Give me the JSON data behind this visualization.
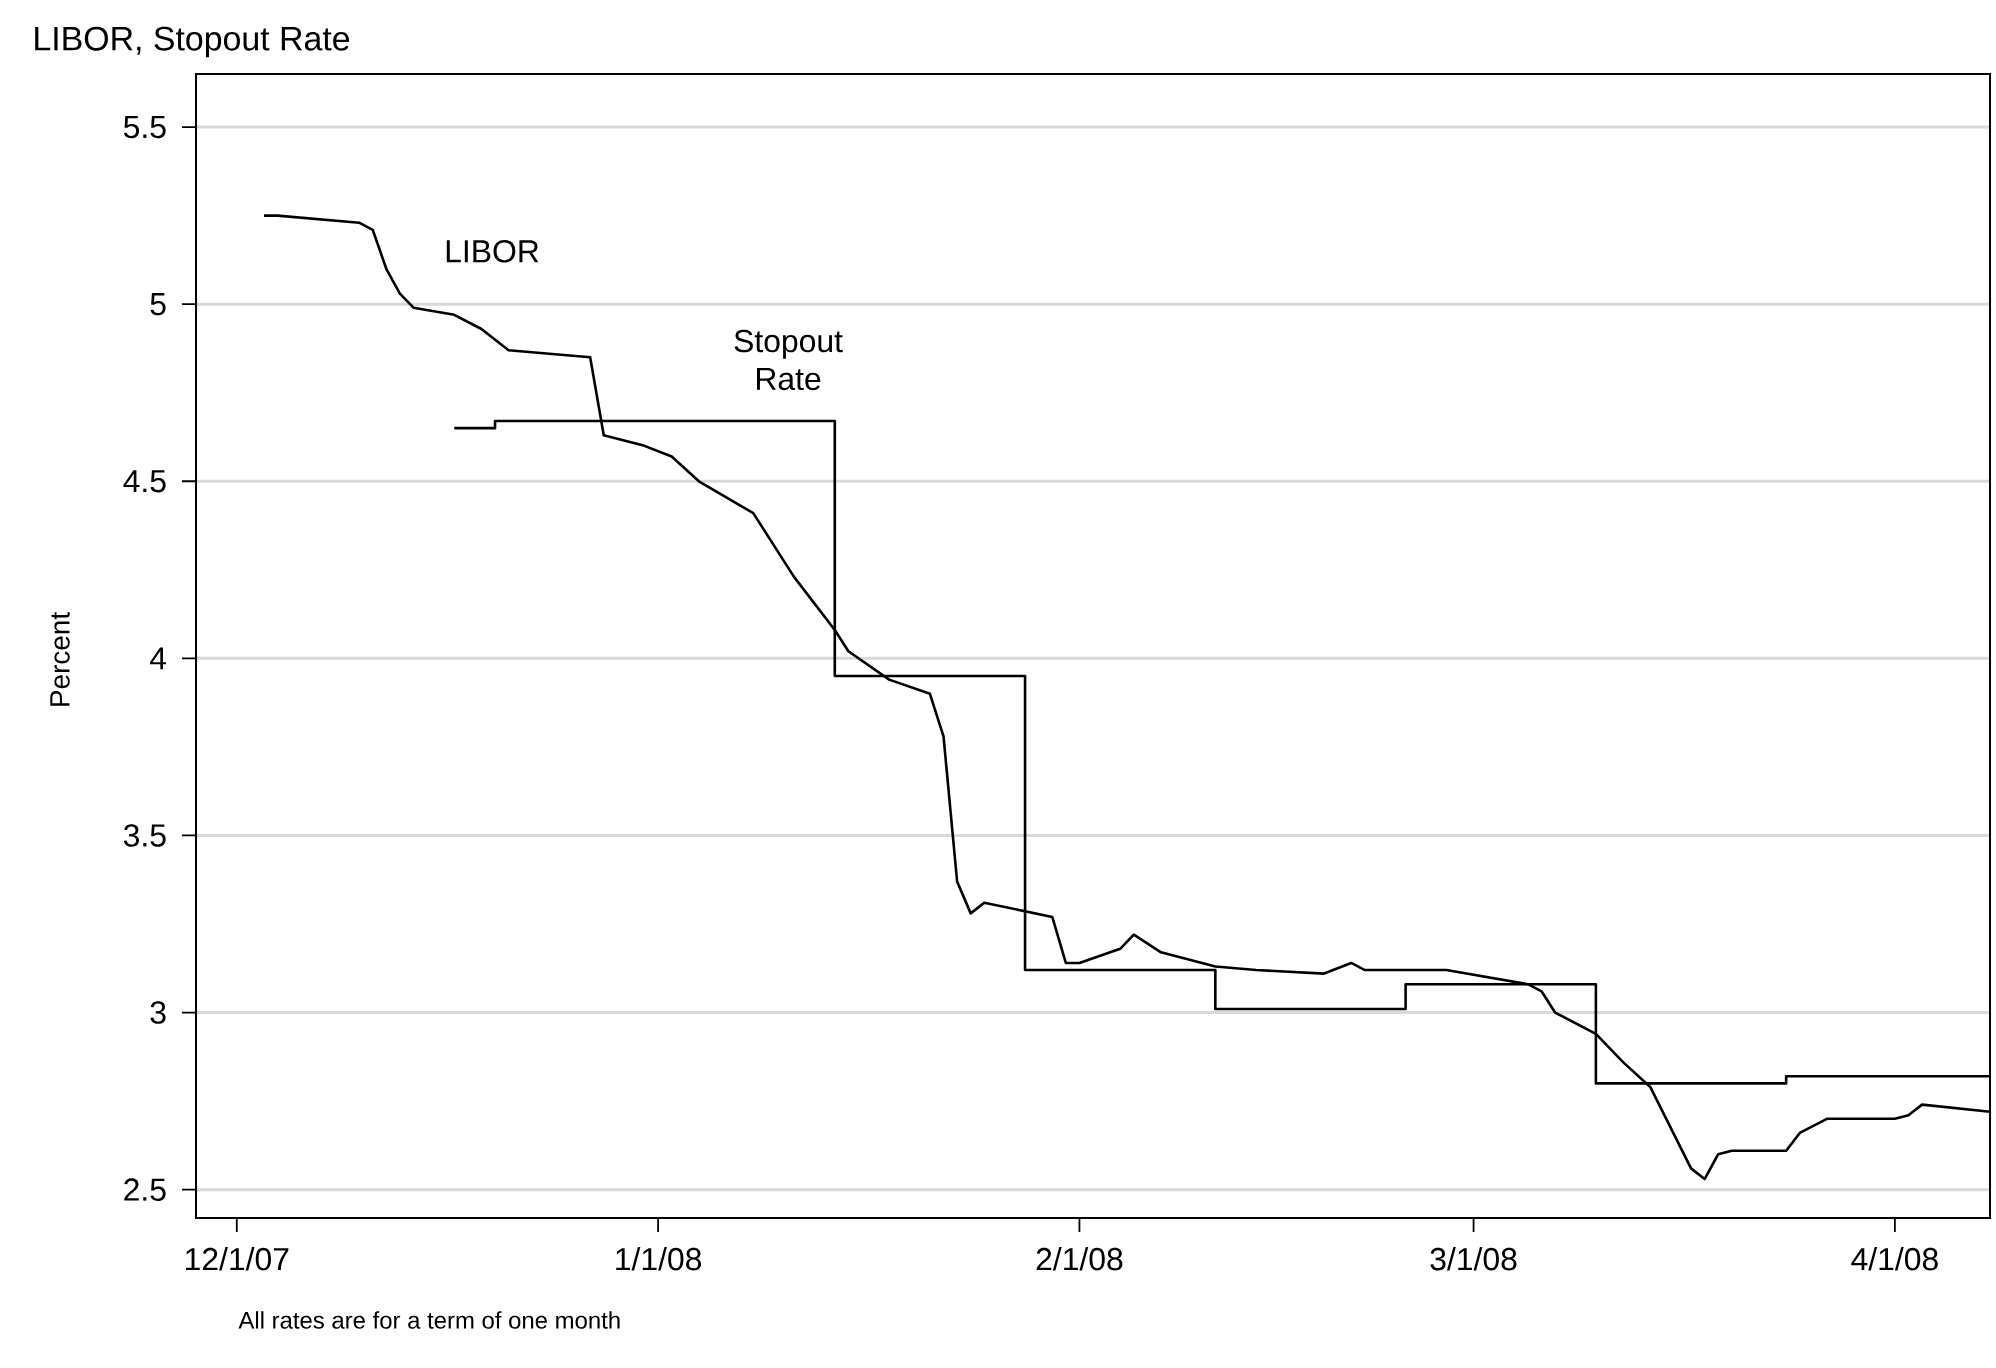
{
  "chart_data": {
    "type": "line",
    "title": "LIBOR, Stopout Rate",
    "ylabel": "Percent",
    "annotations": [
      "All rates are for a term of one month"
    ],
    "xlim": [
      "2007-11-28",
      "2008-04-08"
    ],
    "xticks": [
      {
        "value": "2007-12-01",
        "label": "12/1/07"
      },
      {
        "value": "2008-01-01",
        "label": "1/1/08"
      },
      {
        "value": "2008-02-01",
        "label": "2/1/08"
      },
      {
        "value": "2008-03-01",
        "label": "3/1/08"
      },
      {
        "value": "2008-04-01",
        "label": "4/1/08"
      }
    ],
    "ylim": [
      2.42,
      5.65
    ],
    "yticks": [
      2.5,
      3,
      3.5,
      4,
      4.5,
      5,
      5.5
    ],
    "grid": "y",
    "series": [
      {
        "name": "LIBOR",
        "type": "line",
        "color": "#000000",
        "x": [
          "2007-12-03",
          "2007-12-04",
          "2007-12-07",
          "2007-12-10",
          "2007-12-11",
          "2007-12-12",
          "2007-12-13",
          "2007-12-14",
          "2007-12-17",
          "2007-12-19",
          "2007-12-21",
          "2007-12-27",
          "2007-12-28",
          "2007-12-31",
          "2008-01-02",
          "2008-01-04",
          "2008-01-08",
          "2008-01-09",
          "2008-01-11",
          "2008-01-14",
          "2008-01-15",
          "2008-01-18",
          "2008-01-21",
          "2008-01-22",
          "2008-01-23",
          "2008-01-24",
          "2008-01-25",
          "2008-01-30",
          "2008-01-31",
          "2008-02-01",
          "2008-02-04",
          "2008-02-05",
          "2008-02-07",
          "2008-02-11",
          "2008-02-14",
          "2008-02-19",
          "2008-02-21",
          "2008-02-22",
          "2008-02-26",
          "2008-02-28",
          "2008-03-05",
          "2008-03-06",
          "2008-03-07",
          "2008-03-10",
          "2008-03-12",
          "2008-03-14",
          "2008-03-17",
          "2008-03-18",
          "2008-03-19",
          "2008-03-20",
          "2008-03-24",
          "2008-03-25",
          "2008-03-27",
          "2008-04-01",
          "2008-04-02",
          "2008-04-03",
          "2008-04-08"
        ],
        "values": [
          5.25,
          5.25,
          5.24,
          5.23,
          5.21,
          5.1,
          5.03,
          4.99,
          4.97,
          4.93,
          4.87,
          4.85,
          4.63,
          4.6,
          4.57,
          4.5,
          4.41,
          4.35,
          4.23,
          4.08,
          4.02,
          3.94,
          3.9,
          3.78,
          3.37,
          3.28,
          3.31,
          3.27,
          3.14,
          3.14,
          3.18,
          3.22,
          3.17,
          3.13,
          3.12,
          3.11,
          3.14,
          3.12,
          3.12,
          3.12,
          3.08,
          3.06,
          3.0,
          2.94,
          2.86,
          2.79,
          2.56,
          2.53,
          2.6,
          2.61,
          2.61,
          2.66,
          2.7,
          2.7,
          2.71,
          2.74,
          2.72
        ]
      },
      {
        "name": "Stopout Rate",
        "type": "step",
        "color": "#000000",
        "x": [
          "2007-12-17",
          "2007-12-20",
          "2008-01-14",
          "2008-01-28",
          "2008-02-11",
          "2008-02-25",
          "2008-03-10",
          "2008-03-24",
          "2008-04-08"
        ],
        "values": [
          4.65,
          4.67,
          3.95,
          3.12,
          3.01,
          3.08,
          2.8,
          2.82,
          2.82
        ]
      }
    ]
  }
}
